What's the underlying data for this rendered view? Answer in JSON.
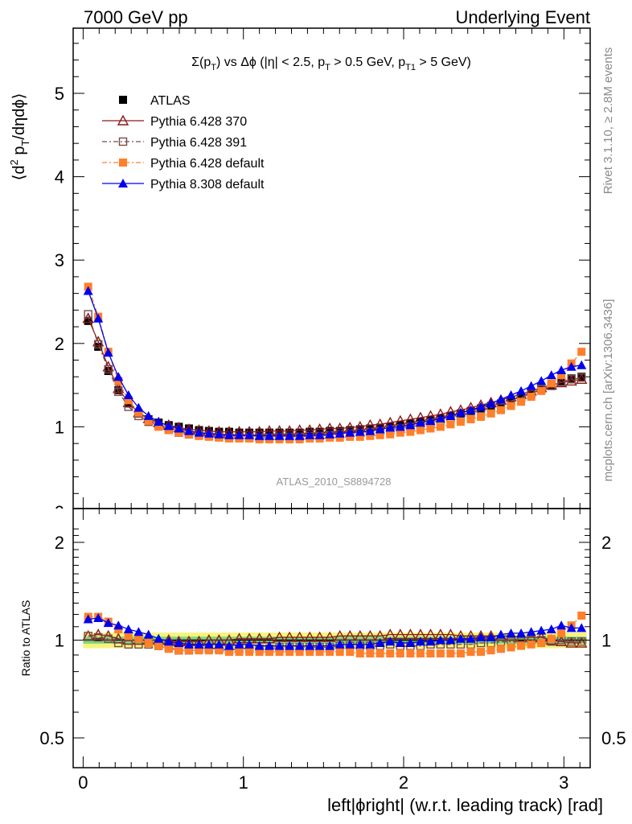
{
  "header": {
    "left": "7000 GeV pp",
    "right": "Underlying Event",
    "rivet": "Rivet 3.1.10, ≥ 2.8M events",
    "mcplots": "mcplots.cern.ch [arXiv:1306.3436]",
    "analysis": "ATLAS_2010_S8894728",
    "plot_title": "Σ(p_T) vs Δφ (|η| < 2.5, p_T > 0.5 GeV, p_T1 > 5 GeV)",
    "ylabel_main": "⟨d² p_T/dηdφ⟩",
    "ylabel_ratio": "Ratio to ATLAS",
    "xlabel": "left|ϕright| (w.r.t. leading track) [rad]"
  },
  "chart_data": [
    {
      "type": "scatter",
      "panel": "main",
      "x": [
        0.0314,
        0.0942,
        0.157,
        0.22,
        0.283,
        0.346,
        0.408,
        0.471,
        0.534,
        0.597,
        0.66,
        0.723,
        0.785,
        0.848,
        0.911,
        0.974,
        1.037,
        1.1,
        1.162,
        1.225,
        1.288,
        1.351,
        1.414,
        1.476,
        1.539,
        1.602,
        1.665,
        1.728,
        1.791,
        1.853,
        1.916,
        1.979,
        2.042,
        2.105,
        2.168,
        2.23,
        2.293,
        2.356,
        2.419,
        2.482,
        2.545,
        2.607,
        2.67,
        2.733,
        2.796,
        2.859,
        2.922,
        2.984,
        3.047,
        3.11
      ],
      "xlim": [
        -0.06,
        3.2
      ],
      "ylim": [
        0,
        5.8
      ],
      "yticks": [
        "1",
        "2",
        "3",
        "4",
        "5"
      ],
      "xticks": [
        "0",
        "1",
        "2",
        "3"
      ],
      "series": [
        {
          "name": "ATLAS",
          "color": "#000000",
          "marker": "filled-square",
          "line": "none",
          "values": [
            2.27,
            1.96,
            1.67,
            1.44,
            1.28,
            1.16,
            1.09,
            1.05,
            1.02,
            1.0,
            0.98,
            0.96,
            0.95,
            0.94,
            0.94,
            0.93,
            0.93,
            0.93,
            0.93,
            0.93,
            0.93,
            0.93,
            0.94,
            0.94,
            0.95,
            0.95,
            0.96,
            0.97,
            0.98,
            0.99,
            1.0,
            1.02,
            1.04,
            1.06,
            1.08,
            1.1,
            1.13,
            1.16,
            1.19,
            1.22,
            1.25,
            1.28,
            1.32,
            1.36,
            1.4,
            1.45,
            1.5,
            1.54,
            1.58,
            1.6
          ]
        },
        {
          "name": "Pythia 6.428 370",
          "color": "#8b1a1a",
          "marker": "open-triangle",
          "line": "solid",
          "values": [
            2.3,
            2.02,
            1.72,
            1.46,
            1.29,
            1.17,
            1.1,
            1.05,
            1.02,
            0.99,
            0.97,
            0.96,
            0.95,
            0.94,
            0.94,
            0.94,
            0.94,
            0.94,
            0.95,
            0.95,
            0.95,
            0.96,
            0.96,
            0.97,
            0.98,
            0.98,
            0.99,
            1.0,
            1.02,
            1.03,
            1.05,
            1.07,
            1.09,
            1.11,
            1.13,
            1.15,
            1.18,
            1.2,
            1.23,
            1.26,
            1.29,
            1.32,
            1.36,
            1.39,
            1.43,
            1.47,
            1.5,
            1.53,
            1.55,
            1.57
          ]
        },
        {
          "name": "Pythia 6.428 391",
          "color": "#7a4a4a",
          "marker": "open-square",
          "line": "dashdot",
          "values": [
            2.35,
            1.99,
            1.69,
            1.42,
            1.24,
            1.13,
            1.06,
            1.01,
            0.97,
            0.93,
            0.91,
            0.9,
            0.89,
            0.88,
            0.87,
            0.87,
            0.87,
            0.87,
            0.87,
            0.88,
            0.88,
            0.88,
            0.89,
            0.89,
            0.9,
            0.91,
            0.92,
            0.93,
            0.94,
            0.95,
            0.97,
            0.98,
            1.0,
            1.02,
            1.05,
            1.07,
            1.1,
            1.13,
            1.16,
            1.2,
            1.23,
            1.27,
            1.31,
            1.35,
            1.4,
            1.45,
            1.49,
            1.54,
            1.57,
            1.59
          ]
        },
        {
          "name": "Pythia 6.428 default",
          "color": "#ff7f2a",
          "marker": "filled-square",
          "line": "dashdot",
          "values": [
            2.68,
            2.32,
            1.9,
            1.55,
            1.32,
            1.17,
            1.07,
            1.0,
            0.96,
            0.93,
            0.91,
            0.89,
            0.88,
            0.87,
            0.86,
            0.86,
            0.86,
            0.85,
            0.85,
            0.85,
            0.85,
            0.85,
            0.86,
            0.86,
            0.87,
            0.87,
            0.88,
            0.88,
            0.89,
            0.9,
            0.91,
            0.93,
            0.94,
            0.96,
            0.98,
            1.0,
            1.03,
            1.06,
            1.09,
            1.12,
            1.16,
            1.2,
            1.25,
            1.3,
            1.36,
            1.43,
            1.52,
            1.62,
            1.76,
            1.9
          ]
        },
        {
          "name": "Pythia 8.308 default",
          "color": "#0000ee",
          "marker": "filled-triangle",
          "line": "solid",
          "values": [
            2.63,
            2.3,
            1.89,
            1.6,
            1.38,
            1.23,
            1.13,
            1.06,
            1.01,
            0.98,
            0.95,
            0.93,
            0.92,
            0.91,
            0.9,
            0.9,
            0.9,
            0.89,
            0.89,
            0.89,
            0.89,
            0.89,
            0.9,
            0.9,
            0.91,
            0.92,
            0.93,
            0.94,
            0.95,
            0.97,
            0.99,
            1.0,
            1.02,
            1.05,
            1.07,
            1.1,
            1.13,
            1.17,
            1.2,
            1.24,
            1.28,
            1.33,
            1.38,
            1.43,
            1.49,
            1.55,
            1.62,
            1.68,
            1.72,
            1.74
          ]
        }
      ]
    },
    {
      "type": "scatter",
      "panel": "ratio",
      "ylabel": "Ratio to ATLAS",
      "ylim": [
        0.3,
        2.3
      ],
      "yticks": [
        "0.5",
        "1",
        "2"
      ],
      "xticks": [
        "0",
        "1",
        "2",
        "3"
      ],
      "bands": {
        "inner": [
          0.975,
          1.025
        ],
        "outer": [
          0.945,
          1.055
        ],
        "inner_color": "#7dd87d",
        "outer_color": "#f5f57a"
      },
      "series": [
        {
          "name": "Pythia 6.428 370",
          "color": "#8b1a1a",
          "marker": "open-triangle",
          "line": "solid",
          "values": [
            1.03,
            1.04,
            1.03,
            1.01,
            1.0,
            1.0,
            1.0,
            1.0,
            1.0,
            0.99,
            0.99,
            0.99,
            1.0,
            1.0,
            1.0,
            1.01,
            1.01,
            1.01,
            1.01,
            1.02,
            1.02,
            1.02,
            1.02,
            1.02,
            1.02,
            1.03,
            1.03,
            1.03,
            1.03,
            1.03,
            1.04,
            1.04,
            1.04,
            1.04,
            1.04,
            1.04,
            1.04,
            1.03,
            1.03,
            1.03,
            1.03,
            1.03,
            1.03,
            1.02,
            1.02,
            1.02,
            1.0,
            0.99,
            0.98,
            0.98
          ]
        },
        {
          "name": "Pythia 6.428 391",
          "color": "#7a4a4a",
          "marker": "open-square",
          "line": "dashdot",
          "values": [
            1.03,
            1.02,
            1.01,
            0.98,
            0.97,
            0.97,
            0.97,
            0.96,
            0.95,
            0.93,
            0.93,
            0.94,
            0.94,
            0.94,
            0.93,
            0.94,
            0.94,
            0.94,
            0.94,
            0.95,
            0.95,
            0.95,
            0.95,
            0.95,
            0.95,
            0.96,
            0.96,
            0.96,
            0.96,
            0.96,
            0.97,
            0.96,
            0.96,
            0.96,
            0.97,
            0.97,
            0.97,
            0.97,
            0.97,
            0.98,
            0.98,
            0.99,
            0.99,
            0.99,
            1.0,
            1.0,
            0.99,
            1.0,
            0.99,
            0.99
          ]
        },
        {
          "name": "Pythia 6.428 default",
          "color": "#ff7f2a",
          "marker": "filled-square",
          "line": "dashdot",
          "values": [
            1.18,
            1.18,
            1.14,
            1.08,
            1.03,
            1.01,
            0.98,
            0.96,
            0.94,
            0.93,
            0.93,
            0.93,
            0.93,
            0.93,
            0.92,
            0.92,
            0.92,
            0.92,
            0.92,
            0.92,
            0.92,
            0.92,
            0.92,
            0.92,
            0.92,
            0.92,
            0.92,
            0.91,
            0.91,
            0.91,
            0.91,
            0.91,
            0.91,
            0.91,
            0.91,
            0.91,
            0.91,
            0.91,
            0.92,
            0.92,
            0.93,
            0.94,
            0.95,
            0.96,
            0.97,
            0.98,
            1.01,
            1.05,
            1.11,
            1.19
          ]
        },
        {
          "name": "Pythia 8.308 default",
          "color": "#0000ee",
          "marker": "filled-triangle",
          "line": "solid",
          "values": [
            1.16,
            1.17,
            1.13,
            1.11,
            1.08,
            1.06,
            1.04,
            1.01,
            0.99,
            0.98,
            0.97,
            0.97,
            0.97,
            0.97,
            0.96,
            0.97,
            0.97,
            0.96,
            0.96,
            0.96,
            0.96,
            0.96,
            0.96,
            0.96,
            0.96,
            0.97,
            0.97,
            0.97,
            0.97,
            0.98,
            0.99,
            0.98,
            0.98,
            0.99,
            0.99,
            1.0,
            1.0,
            1.01,
            1.01,
            1.02,
            1.02,
            1.04,
            1.05,
            1.05,
            1.06,
            1.07,
            1.08,
            1.11,
            1.09,
            1.09
          ]
        }
      ]
    }
  ]
}
